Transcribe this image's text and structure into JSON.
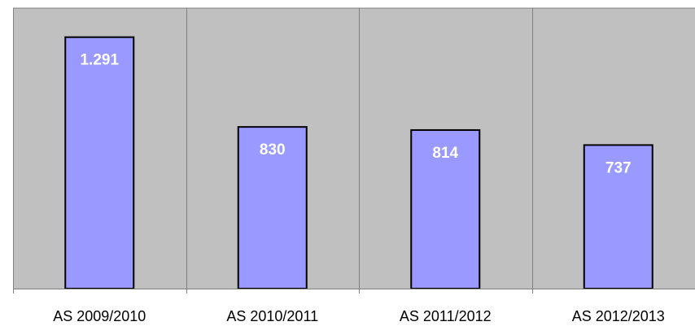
{
  "chart_data": {
    "type": "bar",
    "categories": [
      "AS 2009/2010",
      "AS 2010/2011",
      "AS 2011/2012",
      "AS 2012/2013"
    ],
    "values": [
      1291,
      830,
      814,
      737
    ],
    "data_labels": [
      "1.291",
      "830",
      "814",
      "737"
    ],
    "title": "",
    "xlabel": "",
    "ylabel": "",
    "ylim": [
      0,
      1440
    ],
    "grid": "vertical",
    "legend": "none",
    "colors": {
      "plot_background": "#c0c0c0",
      "bar_fill": "#9999ff",
      "bar_stroke": "#000000",
      "gridline": "#808080",
      "axis": "#808080",
      "data_label": "#ffffff"
    }
  }
}
